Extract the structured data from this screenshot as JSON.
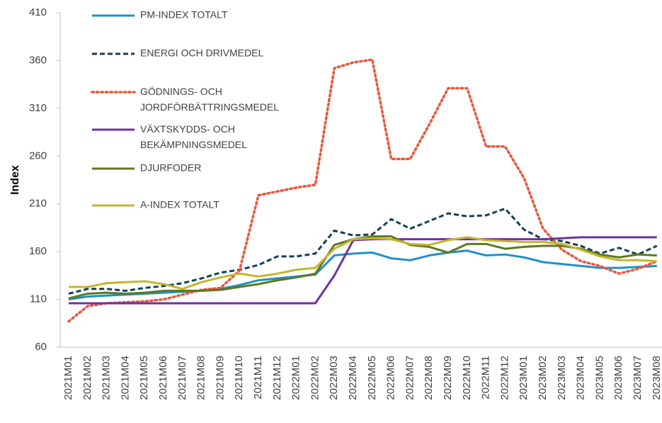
{
  "chart_data": {
    "type": "line",
    "ylabel": "Index",
    "categories": [
      "2021M01",
      "2021M02",
      "2021M03",
      "2021M04",
      "2021M05",
      "2021M06",
      "2021M07",
      "2021M08",
      "2021M09",
      "2021M10",
      "2021M11",
      "2021M12",
      "2022M01",
      "2022M02",
      "2022M03",
      "2022M04",
      "2022M05",
      "2022M06",
      "2022M07",
      "2022M08",
      "2022M09",
      "2022M10",
      "2022M11",
      "2022M12",
      "2023M01",
      "2023M02",
      "2023M03",
      "2023M04",
      "2023M05",
      "2023M06",
      "2023M07",
      "2023M08"
    ],
    "ylim": [
      60,
      410
    ],
    "yticks": [
      60,
      110,
      160,
      210,
      260,
      310,
      360,
      410
    ],
    "grid": false,
    "legend": "upper left",
    "series": [
      {
        "name": "PM-INDEX TOTALT",
        "color": "#1f8fcc",
        "style": "solid",
        "values": [
          110,
          113,
          114,
          115,
          116,
          117,
          118,
          119,
          121,
          125,
          130,
          132,
          134,
          136,
          156,
          158,
          159,
          153,
          151,
          156,
          159,
          161,
          156,
          157,
          154,
          149,
          147,
          145,
          143,
          143,
          144,
          145
        ]
      },
      {
        "name": "ENERGI OCH DRIVMEDEL",
        "color": "#123f5a",
        "style": "dashed",
        "values": [
          116,
          121,
          121,
          119,
          122,
          124,
          127,
          132,
          138,
          141,
          146,
          155,
          155,
          158,
          182,
          177,
          178,
          194,
          184,
          192,
          200,
          197,
          198,
          205,
          183,
          173,
          171,
          166,
          158,
          164,
          157,
          166
        ]
      },
      {
        "name": "GÖDNINGS- OCH\nJORDFÖRBÄTTRINGSMEDEL",
        "color": "#e8573b",
        "style": "dotted",
        "values": [
          87,
          103,
          106,
          107,
          108,
          110,
          115,
          120,
          122,
          140,
          219,
          223,
          227,
          230,
          352,
          358,
          361,
          257,
          257,
          293,
          331,
          331,
          270,
          270,
          237,
          184,
          162,
          150,
          145,
          137,
          142,
          150
        ]
      },
      {
        "name": "VÄXTSKYDDS- OCH\nBEKÄMPNINGSMEDEL",
        "color": "#7030a0",
        "style": "solid",
        "values": [
          106,
          106,
          106,
          106,
          106,
          106,
          106,
          106,
          106,
          106,
          106,
          106,
          106,
          106,
          135,
          172,
          173,
          173,
          173,
          173,
          173,
          173,
          173,
          173,
          173,
          173,
          174,
          175,
          175,
          175,
          175,
          175
        ]
      },
      {
        "name": "DJURFODER",
        "color": "#5b7a1f",
        "style": "solid",
        "values": [
          111,
          116,
          117,
          116,
          117,
          119,
          119,
          119,
          120,
          123,
          126,
          130,
          133,
          137,
          167,
          173,
          176,
          176,
          167,
          165,
          159,
          168,
          168,
          163,
          165,
          166,
          166,
          163,
          157,
          154,
          157,
          156
        ]
      },
      {
        "name": "A-INDEX TOTALT",
        "color": "#c4b62c",
        "style": "solid",
        "values": [
          123,
          123,
          127,
          128,
          129,
          126,
          121,
          128,
          133,
          137,
          134,
          137,
          141,
          143,
          163,
          173,
          174,
          173,
          168,
          167,
          172,
          175,
          172,
          171,
          170,
          170,
          168,
          162,
          155,
          151,
          151,
          150
        ]
      }
    ]
  }
}
